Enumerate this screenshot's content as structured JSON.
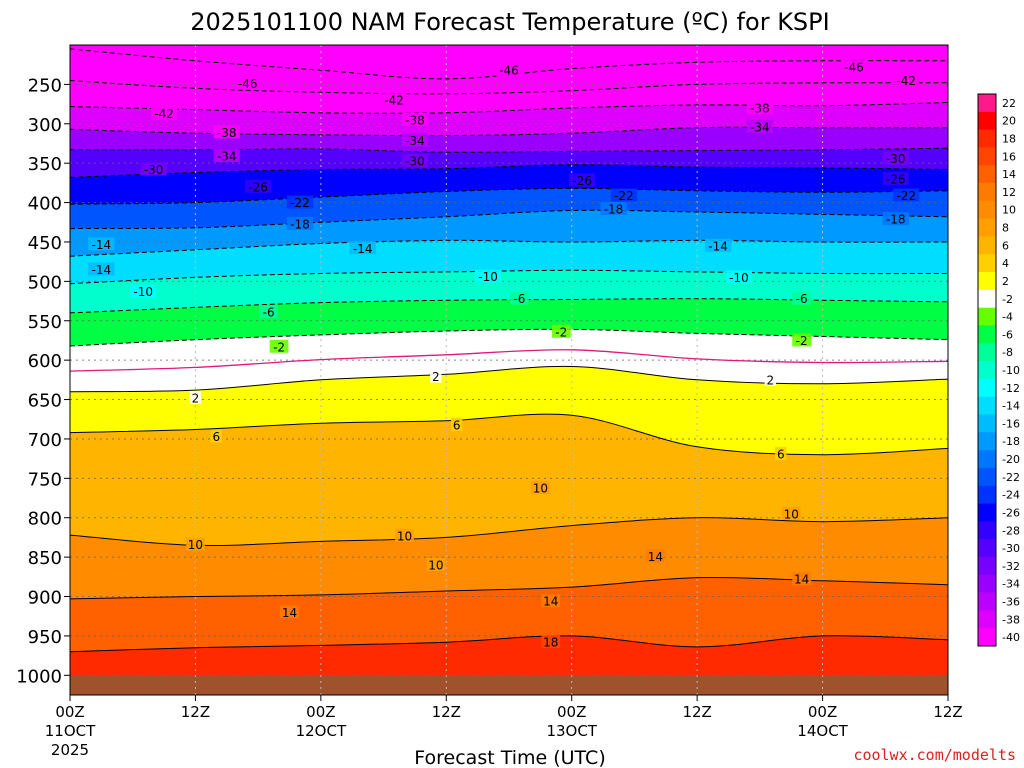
{
  "chart_data": {
    "type": "heatmap",
    "title": "2025101100 NAM Forecast Temperature (ºC) for KSPI",
    "xlabel": "Forecast Time (UTC)",
    "ylabel": "",
    "x_ticks": [
      {
        "hours": 0,
        "time": "00Z",
        "date": "11OCT",
        "year": "2025"
      },
      {
        "hours": 12,
        "time": "12Z",
        "date": "",
        "year": ""
      },
      {
        "hours": 24,
        "time": "00Z",
        "date": "12OCT",
        "year": ""
      },
      {
        "hours": 36,
        "time": "12Z",
        "date": "",
        "year": ""
      },
      {
        "hours": 48,
        "time": "00Z",
        "date": "13OCT",
        "year": ""
      },
      {
        "hours": 60,
        "time": "12Z",
        "date": "",
        "year": ""
      },
      {
        "hours": 72,
        "time": "00Z",
        "date": "14OCT",
        "year": ""
      },
      {
        "hours": 84,
        "time": "12Z",
        "date": "",
        "year": ""
      }
    ],
    "x_range_hours": [
      0,
      84
    ],
    "y_ticks": [
      250,
      300,
      350,
      400,
      450,
      500,
      550,
      600,
      650,
      700,
      750,
      800,
      850,
      900,
      950,
      1000
    ],
    "y_range_hPa": [
      200,
      1025
    ],
    "ground_pressure_hPa": 1000,
    "legend_levels": [
      22,
      20,
      18,
      16,
      14,
      12,
      10,
      8,
      6,
      4,
      2,
      -2,
      -4,
      -6,
      -8,
      -10,
      -12,
      -14,
      -16,
      -18,
      -20,
      -22,
      -24,
      -26,
      -28,
      -30,
      -32,
      -34,
      -36,
      -38,
      -40
    ],
    "legend_colors": [
      "#ff1a8c",
      "#ff0000",
      "#ff2a00",
      "#ff4500",
      "#ff6000",
      "#ff7b00",
      "#ff8c00",
      "#ffa000",
      "#ffb400",
      "#ffd000",
      "#ffff00",
      "#ffffff",
      "#66ff00",
      "#00ff44",
      "#00ff99",
      "#00ffcc",
      "#00ffff",
      "#00ddff",
      "#00bbff",
      "#0099ff",
      "#0077ff",
      "#0055ff",
      "#0033ff",
      "#0000ff",
      "#3300ff",
      "#5500ff",
      "#7700ff",
      "#9900ff",
      "#bb00ff",
      "#dd00ff",
      "#ff00ff"
    ],
    "contour_interval_C": 4,
    "isotherms": [
      {
        "value": -46,
        "pressure": [
          205,
          220,
          232,
          243,
          230,
          222,
          220,
          220
        ]
      },
      {
        "value": -42,
        "pressure": [
          245,
          255,
          260,
          262,
          258,
          250,
          248,
          248
        ]
      },
      {
        "value": -38,
        "pressure": [
          278,
          282,
          286,
          286,
          280,
          276,
          277,
          273
        ]
      },
      {
        "value": -34,
        "pressure": [
          307,
          312,
          314,
          315,
          312,
          305,
          305,
          305
        ]
      },
      {
        "value": -30,
        "pressure": [
          333,
          333,
          332,
          336,
          335,
          334,
          333,
          331
        ]
      },
      {
        "value": -26,
        "pressure": [
          368,
          362,
          358,
          357,
          352,
          355,
          356,
          358
        ]
      },
      {
        "value": -22,
        "pressure": [
          402,
          400,
          393,
          386,
          382,
          385,
          387,
          385
        ]
      },
      {
        "value": -18,
        "pressure": [
          433,
          432,
          425,
          418,
          410,
          412,
          415,
          418
        ]
      },
      {
        "value": -14,
        "pressure": [
          468,
          460,
          452,
          448,
          450,
          448,
          450,
          450
        ]
      },
      {
        "value": -10,
        "pressure": [
          503,
          495,
          490,
          488,
          486,
          488,
          490,
          490
        ]
      },
      {
        "value": -6,
        "pressure": [
          540,
          533,
          527,
          524,
          523,
          522,
          524,
          526
        ]
      },
      {
        "value": -2,
        "pressure": [
          582,
          574,
          568,
          563,
          561,
          566,
          570,
          574
        ]
      },
      {
        "value": 2,
        "pressure": [
          640,
          638,
          625,
          618,
          608,
          625,
          630,
          624
        ]
      },
      {
        "value": 6,
        "pressure": [
          692,
          688,
          680,
          677,
          670,
          710,
          720,
          712
        ]
      },
      {
        "value": 10,
        "pressure": [
          822,
          835,
          830,
          825,
          810,
          800,
          805,
          800
        ]
      },
      {
        "value": 14,
        "pressure": [
          903,
          900,
          898,
          893,
          888,
          876,
          880,
          885
        ]
      },
      {
        "value": 18,
        "pressure": [
          970,
          965,
          962,
          958,
          950,
          964,
          950,
          955
        ]
      }
    ],
    "contour_labels": [
      {
        "text": "-46",
        "hours": 17,
        "pressure": 249
      },
      {
        "text": "-46",
        "hours": 42,
        "pressure": 232
      },
      {
        "text": "-46",
        "hours": 75,
        "pressure": 228
      },
      {
        "text": "-42",
        "hours": 9,
        "pressure": 287
      },
      {
        "text": "-42",
        "hours": 31,
        "pressure": 270
      },
      {
        "text": "-42",
        "hours": 80,
        "pressure": 245
      },
      {
        "text": "-38",
        "hours": 15,
        "pressure": 311
      },
      {
        "text": "-38",
        "hours": 33,
        "pressure": 295
      },
      {
        "text": "-38",
        "hours": 66,
        "pressure": 280
      },
      {
        "text": "-34",
        "hours": 15,
        "pressure": 341
      },
      {
        "text": "-34",
        "hours": 33,
        "pressure": 321
      },
      {
        "text": "-34",
        "hours": 66,
        "pressure": 304
      },
      {
        "text": "-30",
        "hours": 8,
        "pressure": 358
      },
      {
        "text": "-30",
        "hours": 33,
        "pressure": 347
      },
      {
        "text": "-30",
        "hours": 79,
        "pressure": 344
      },
      {
        "text": "-26",
        "hours": 18,
        "pressure": 380
      },
      {
        "text": "-26",
        "hours": 49,
        "pressure": 372
      },
      {
        "text": "-26",
        "hours": 79,
        "pressure": 370
      },
      {
        "text": "-22",
        "hours": 22,
        "pressure": 400
      },
      {
        "text": "-22",
        "hours": 53,
        "pressure": 391
      },
      {
        "text": "-22",
        "hours": 80,
        "pressure": 391
      },
      {
        "text": "-18",
        "hours": 22,
        "pressure": 427
      },
      {
        "text": "-18",
        "hours": 52,
        "pressure": 408
      },
      {
        "text": "-18",
        "hours": 79,
        "pressure": 421
      },
      {
        "text": "-14",
        "hours": 3,
        "pressure": 453
      },
      {
        "text": "-14",
        "hours": 28,
        "pressure": 458
      },
      {
        "text": "-14",
        "hours": 62,
        "pressure": 455
      },
      {
        "text": "-14",
        "hours": 3,
        "pressure": 485
      },
      {
        "text": "-10",
        "hours": 7,
        "pressure": 513
      },
      {
        "text": "-10",
        "hours": 40,
        "pressure": 494
      },
      {
        "text": "-10",
        "hours": 64,
        "pressure": 495
      },
      {
        "text": "-6",
        "hours": 19,
        "pressure": 539
      },
      {
        "text": "-6",
        "hours": 43,
        "pressure": 522
      },
      {
        "text": "-6",
        "hours": 70,
        "pressure": 522
      },
      {
        "text": "-2",
        "hours": 20,
        "pressure": 583
      },
      {
        "text": "-2",
        "hours": 47,
        "pressure": 564
      },
      {
        "text": "-2",
        "hours": 70,
        "pressure": 575
      },
      {
        "text": "2",
        "hours": 12,
        "pressure": 648
      },
      {
        "text": "2",
        "hours": 35,
        "pressure": 621
      },
      {
        "text": "2",
        "hours": 67,
        "pressure": 625
      },
      {
        "text": "6",
        "hours": 14,
        "pressure": 697
      },
      {
        "text": "6",
        "hours": 37,
        "pressure": 682
      },
      {
        "text": "6",
        "hours": 68,
        "pressure": 719
      },
      {
        "text": "10",
        "hours": 12,
        "pressure": 834
      },
      {
        "text": "10",
        "hours": 32,
        "pressure": 823
      },
      {
        "text": "10",
        "hours": 35,
        "pressure": 860
      },
      {
        "text": "10",
        "hours": 45,
        "pressure": 762
      },
      {
        "text": "10",
        "hours": 69,
        "pressure": 795
      },
      {
        "text": "14",
        "hours": 21,
        "pressure": 920
      },
      {
        "text": "14",
        "hours": 46,
        "pressure": 906
      },
      {
        "text": "14",
        "hours": 56,
        "pressure": 849
      },
      {
        "text": "14",
        "hours": 70,
        "pressure": 878
      },
      {
        "text": "18",
        "hours": 46,
        "pressure": 958
      }
    ],
    "source": "coolwx.com/modelts"
  }
}
